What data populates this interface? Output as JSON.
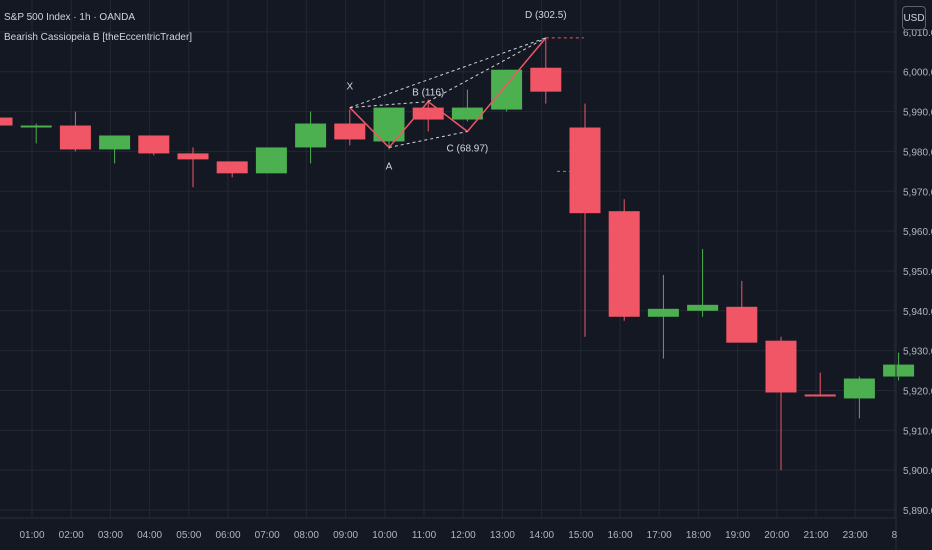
{
  "header": {
    "title": "S&P 500 Index · 1h · OANDA",
    "indicator": "Bearish Cassiopeia B [theEccentricTrader]",
    "currency_button": "USD"
  },
  "colors": {
    "background": "#141823",
    "up": "#4caf50",
    "down": "#f05665",
    "grid": "#232733",
    "pattern_line": "#f05665",
    "dashed": "#d1d4dc"
  },
  "chart_data": {
    "type": "candlestick",
    "title": "S&P 500 Index · 1h · OANDA",
    "ylim": [
      5888,
      6018
    ],
    "y_ticks": [
      5890,
      5900,
      5910,
      5920,
      5930,
      5940,
      5950,
      5960,
      5970,
      5980,
      5990,
      6000,
      6010
    ],
    "y_tick_labels": [
      "5,890.0",
      "5,900.0",
      "5,910.0",
      "5,920.0",
      "5,930.0",
      "5,940.0",
      "5,950.0",
      "5,960.0",
      "5,970.0",
      "5,980.0",
      "5,990.0",
      "6,000.0",
      "6,010.0"
    ],
    "x_tick_labels": [
      "01:00",
      "02:00",
      "03:00",
      "04:00",
      "05:00",
      "06:00",
      "07:00",
      "08:00",
      "09:00",
      "10:00",
      "11:00",
      "12:00",
      "13:00",
      "14:00",
      "15:00",
      "16:00",
      "17:00",
      "18:00",
      "19:00",
      "20:00",
      "21:00",
      "23:00",
      "8"
    ],
    "x_tick_index": [
      0.5,
      1.5,
      2.5,
      3.5,
      4.5,
      5.5,
      6.5,
      7.5,
      8.5,
      9.5,
      10.5,
      11.5,
      12.5,
      13.5,
      14.5,
      15.5,
      16.5,
      17.5,
      18.5,
      19.5,
      20.5,
      21.5,
      22.5
    ],
    "candles": [
      {
        "o": 5988.5,
        "h": 5989.5,
        "l": 5985.0,
        "c": 5986.5
      },
      {
        "o": 5986.0,
        "h": 5987.0,
        "l": 5982.0,
        "c": 5986.5
      },
      {
        "o": 5986.5,
        "h": 5990.0,
        "l": 5980.0,
        "c": 5980.5
      },
      {
        "o": 5980.5,
        "h": 5984.0,
        "l": 5977.0,
        "c": 5984.0
      },
      {
        "o": 5984.0,
        "h": 5984.0,
        "l": 5979.0,
        "c": 5979.5
      },
      {
        "o": 5979.5,
        "h": 5981.0,
        "l": 5971.0,
        "c": 5978.0
      },
      {
        "o": 5977.5,
        "h": 5977.5,
        "l": 5973.5,
        "c": 5974.5
      },
      {
        "o": 5974.5,
        "h": 5981.0,
        "l": 5974.5,
        "c": 5981.0
      },
      {
        "o": 5981.0,
        "h": 5990.0,
        "l": 5977.0,
        "c": 5987.0
      },
      {
        "o": 5987.0,
        "h": 5990.5,
        "l": 5981.5,
        "c": 5983.0
      },
      {
        "o": 5982.5,
        "h": 5991.0,
        "l": 5980.5,
        "c": 5991.0
      },
      {
        "o": 5991.0,
        "h": 5993.0,
        "l": 5985.0,
        "c": 5988.0
      },
      {
        "o": 5988.0,
        "h": 5995.5,
        "l": 5987.5,
        "c": 5991.0
      },
      {
        "o": 5990.5,
        "h": 6000.5,
        "l": 5990.0,
        "c": 6000.5
      },
      {
        "o": 6001.0,
        "h": 6008.5,
        "l": 5992.0,
        "c": 5995.0
      },
      {
        "o": 5986.0,
        "h": 5992.0,
        "l": 5933.5,
        "c": 5964.5
      },
      {
        "o": 5965.0,
        "h": 5968.0,
        "l": 5937.5,
        "c": 5938.5
      },
      {
        "o": 5938.5,
        "h": 5949.0,
        "l": 5928.0,
        "c": 5940.5
      },
      {
        "o": 5940.0,
        "h": 5955.5,
        "l": 5938.5,
        "c": 5941.5
      },
      {
        "o": 5941.0,
        "h": 5947.5,
        "l": 5932.0,
        "c": 5932.0
      },
      {
        "o": 5932.5,
        "h": 5933.5,
        "l": 5900.0,
        "c": 5919.5
      },
      {
        "o": 5919.0,
        "h": 5924.5,
        "l": 5918.5,
        "c": 5918.5
      },
      {
        "o": 5918.0,
        "h": 5923.5,
        "l": 5913.0,
        "c": 5923.0
      },
      {
        "o": 5923.5,
        "h": 5929.5,
        "l": 5922.5,
        "c": 5926.5
      }
    ],
    "pattern": {
      "points": [
        {
          "label": "X",
          "i": 9,
          "y": 5991.0
        },
        {
          "label": "A",
          "i": 10,
          "y": 5981.0
        },
        {
          "label": "B (116)",
          "i": 11,
          "y": 5992.5
        },
        {
          "label": "C (68.97)",
          "i": 12,
          "y": 5985.0
        },
        {
          "label": "D (302.5)",
          "i": 14,
          "y": 6008.5
        }
      ],
      "dashed_pairs": [
        [
          0,
          2
        ],
        [
          2,
          4
        ],
        [
          1,
          3
        ],
        [
          0,
          4
        ]
      ],
      "d_level": 6008.5,
      "target_level": 5975.0
    }
  }
}
